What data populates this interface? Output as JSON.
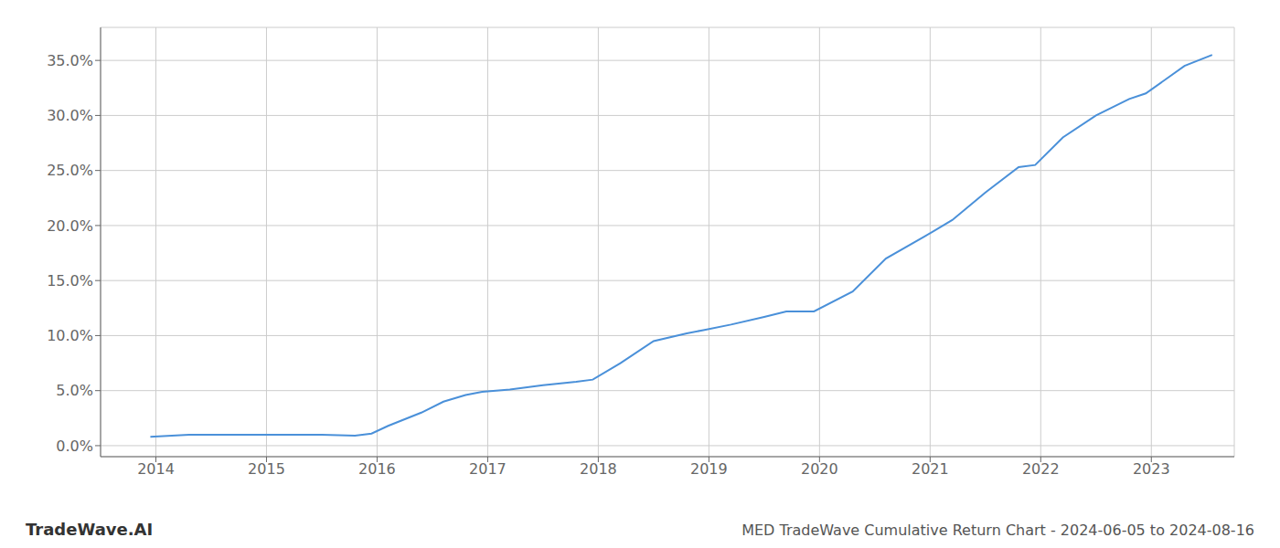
{
  "chart_data": {
    "type": "line",
    "title": "MED TradeWave Cumulative Return Chart - 2024-06-05 to 2024-08-16",
    "annotations": [
      "TradeWave.AI"
    ],
    "x": [
      2013.95,
      2014.3,
      2014.7,
      2014.95,
      2015.1,
      2015.5,
      2015.8,
      2015.95,
      2016.1,
      2016.4,
      2016.6,
      2016.8,
      2016.95,
      2017.2,
      2017.5,
      2017.8,
      2017.95,
      2018.2,
      2018.5,
      2018.8,
      2018.95,
      2019.2,
      2019.5,
      2019.7,
      2019.95,
      2020.3,
      2020.6,
      2020.95,
      2021.2,
      2021.5,
      2021.8,
      2021.95,
      2022.2,
      2022.5,
      2022.8,
      2022.95,
      2023.3,
      2023.55
    ],
    "values": [
      0.8,
      1.0,
      1.0,
      1.0,
      1.0,
      1.0,
      0.9,
      1.1,
      1.8,
      3.0,
      4.0,
      4.6,
      4.9,
      5.1,
      5.5,
      5.8,
      6.0,
      7.5,
      9.5,
      10.2,
      10.5,
      11.0,
      11.7,
      12.2,
      12.2,
      14.0,
      17.0,
      19.0,
      20.5,
      23.0,
      25.3,
      25.5,
      28.0,
      30.0,
      31.5,
      32.0,
      34.5,
      35.5
    ],
    "color": "#4a90d9",
    "xlim": [
      2013.5,
      2023.75
    ],
    "ylim": [
      -1.0,
      38.0
    ],
    "xticks": [
      2014,
      2015,
      2016,
      2017,
      2018,
      2019,
      2020,
      2021,
      2022,
      2023
    ],
    "yticks": [
      {
        "value": 0.0,
        "label": "0.0%"
      },
      {
        "value": 5.0,
        "label": "5.0%"
      },
      {
        "value": 10.0,
        "label": "10.0%"
      },
      {
        "value": 15.0,
        "label": "15.0%"
      },
      {
        "value": 20.0,
        "label": "20.0%"
      },
      {
        "value": 25.0,
        "label": "25.0%"
      },
      {
        "value": 30.0,
        "label": "30.0%"
      },
      {
        "value": 35.0,
        "label": "35.0%"
      }
    ],
    "grid": true
  }
}
